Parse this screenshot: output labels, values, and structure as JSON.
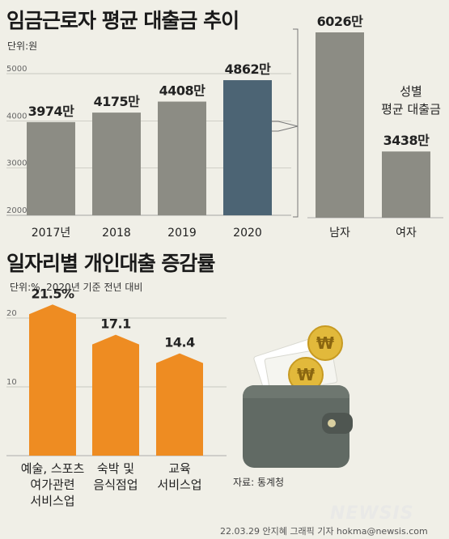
{
  "header": {
    "title1": "임금근로자 평균 대출금 추이",
    "unit1": "단위:원",
    "title2": "일자리별 개인대출 증감률",
    "unit2": "단위:%, 2020년 기준 전년 대비"
  },
  "gender": {
    "label": "성별\n평균 대출금"
  },
  "source": "자료: 통계청",
  "credit": "22.03.29 안지혜 그래픽 기자 hokma@newsis.com",
  "logo": "NEWSIS",
  "colors": {
    "bar_gray": "#8c8c84",
    "bar_highlight": "#4c6474",
    "bar_orange": "#ee8c22",
    "background": "#f0efe7"
  },
  "chart_data": [
    {
      "type": "bar",
      "categories": [
        "2017년",
        "2018",
        "2019",
        "2020"
      ],
      "values": [
        3974,
        4175,
        4408,
        4862
      ],
      "value_labels": [
        "3974만",
        "4175만",
        "4408만",
        "4862만"
      ],
      "yticks": [
        "2000",
        "3000",
        "4000",
        "5000"
      ],
      "ylim": [
        2000,
        5000
      ],
      "highlight": "2020"
    },
    {
      "type": "bar",
      "categories": [
        "남자",
        "여자"
      ],
      "values": [
        6026,
        3438
      ],
      "value_labels": [
        "6026만",
        "3438만"
      ],
      "ylim": [
        2000,
        6026
      ]
    },
    {
      "type": "bar",
      "categories": [
        "예술, 스포츠\n여가관련\n서비스업",
        "숙박 및\n음식점업",
        "교육\n서비스업"
      ],
      "values": [
        21.5,
        17.1,
        14.4
      ],
      "value_labels": [
        "21.5%",
        "17.1",
        "14.4"
      ],
      "yticks": [
        "10",
        "20"
      ],
      "ylim": [
        0,
        20
      ]
    }
  ]
}
